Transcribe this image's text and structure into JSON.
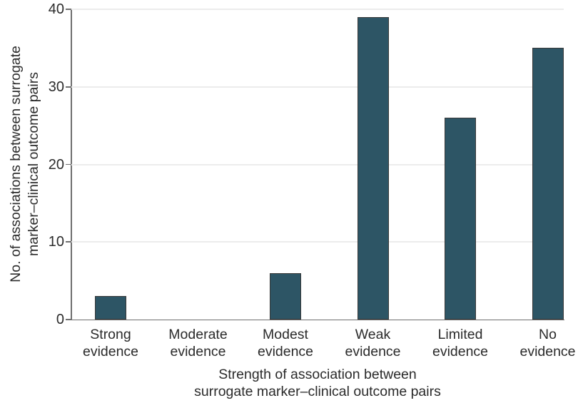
{
  "figure": {
    "background": "#ffffff"
  },
  "chart_data": {
    "type": "bar",
    "title": "",
    "categories": [
      "Strong evidence",
      "Moderate evidence",
      "Modest evidence",
      "Weak evidence",
      "Limited evidence",
      "No evidence"
    ],
    "category_lines": [
      [
        "Strong",
        "evidence"
      ],
      [
        "Moderate",
        "evidence"
      ],
      [
        "Modest",
        "evidence"
      ],
      [
        "Weak",
        "evidence"
      ],
      [
        "Limited",
        "evidence"
      ],
      [
        "No",
        "evidence"
      ]
    ],
    "values": [
      3,
      0,
      6,
      39,
      26,
      35
    ],
    "xlabel": "Strength of association between surrogate marker–clinical outcome pairs",
    "xlabel_lines": [
      "Strength of association between",
      "surrogate marker–clinical outcome pairs"
    ],
    "ylabel": "No. of associations between surrogate marker–clinical outcome pairs",
    "ylabel_lines": [
      "No. of associations between surrogate",
      "marker–clinical outcome pairs"
    ],
    "ylim": [
      0,
      40
    ],
    "yticks": [
      0,
      10,
      20,
      30,
      40
    ],
    "grid": "horizontal",
    "legend": "none",
    "colors": {
      "bar_fill": "#2D5565",
      "bar_stroke": "#383838",
      "gridline": "#ececec",
      "axis": "#6f6f6f",
      "text": "#2b2b2b"
    }
  }
}
